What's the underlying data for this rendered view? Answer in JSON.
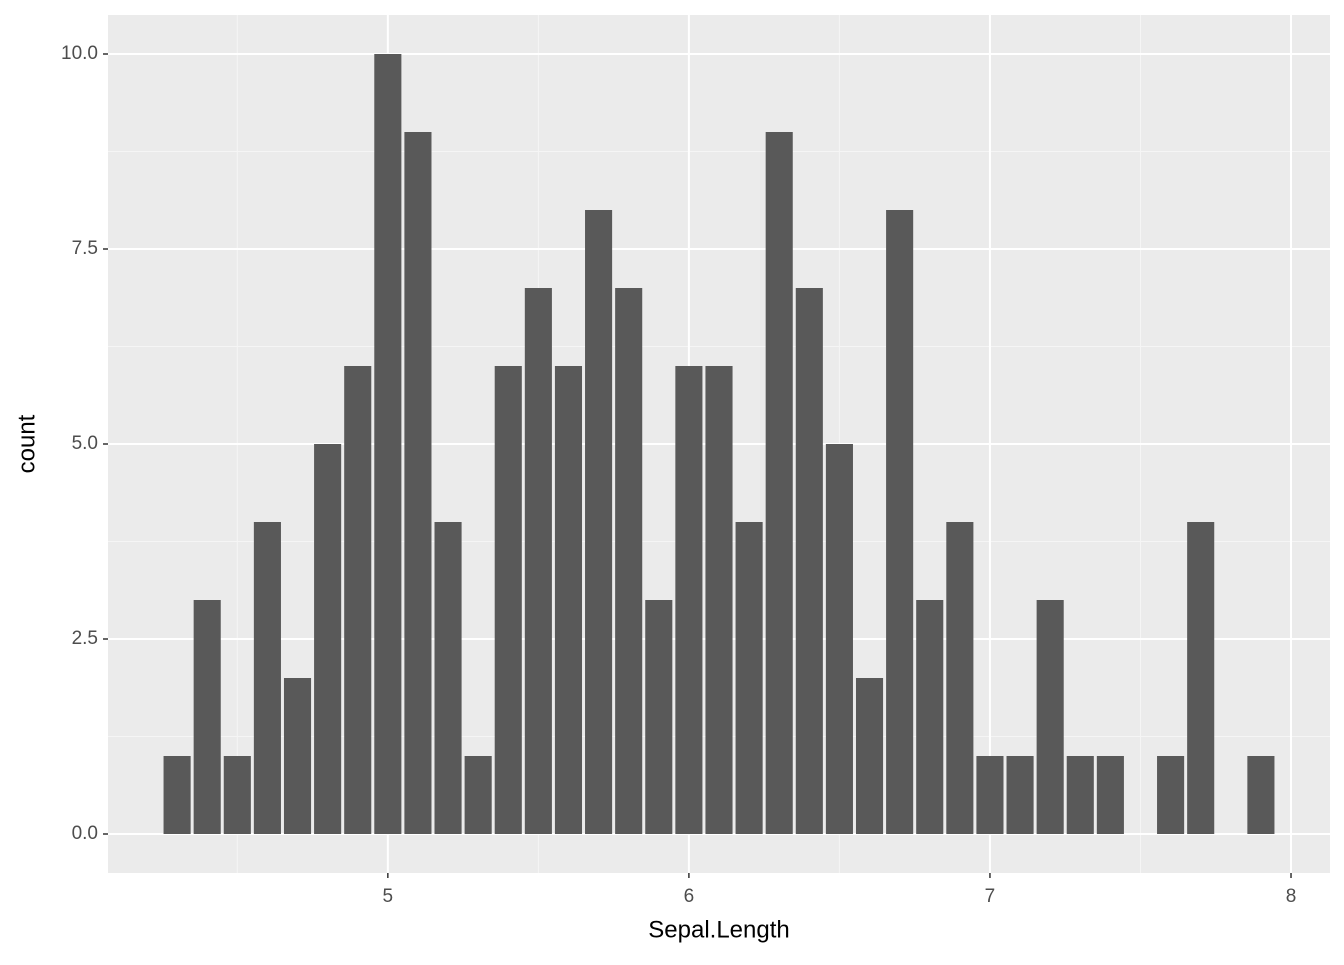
{
  "chart_data": {
    "type": "bar",
    "x_label": "Sepal.Length",
    "y_label": "count",
    "x": [
      4.3,
      4.4,
      4.5,
      4.6,
      4.7,
      4.8,
      4.9,
      5.0,
      5.1,
      5.2,
      5.3,
      5.4,
      5.5,
      5.6,
      5.7,
      5.8,
      5.9,
      6.0,
      6.1,
      6.2,
      6.3,
      6.4,
      6.5,
      6.6,
      6.7,
      6.8,
      6.9,
      7.0,
      7.1,
      7.2,
      7.3,
      7.4,
      7.6,
      7.7,
      7.9
    ],
    "values": [
      1,
      3,
      1,
      4,
      2,
      5,
      6,
      10,
      9,
      4,
      1,
      6,
      7,
      6,
      8,
      7,
      3,
      6,
      6,
      4,
      9,
      7,
      5,
      2,
      8,
      3,
      4,
      1,
      1,
      3,
      1,
      1,
      1,
      4,
      1
    ],
    "color": "#595959",
    "xlim": [
      4.0705,
      8.1295
    ],
    "xticks": [
      5,
      6,
      7,
      8
    ],
    "ylim": [
      -0.5,
      10.5
    ],
    "yticks": [
      {
        "value": 0,
        "label": "0.0"
      },
      2.5,
      {
        "value": 5,
        "label": "5.0"
      },
      7.5,
      {
        "value": 10,
        "label": "10.0"
      }
    ],
    "grid": true
  }
}
